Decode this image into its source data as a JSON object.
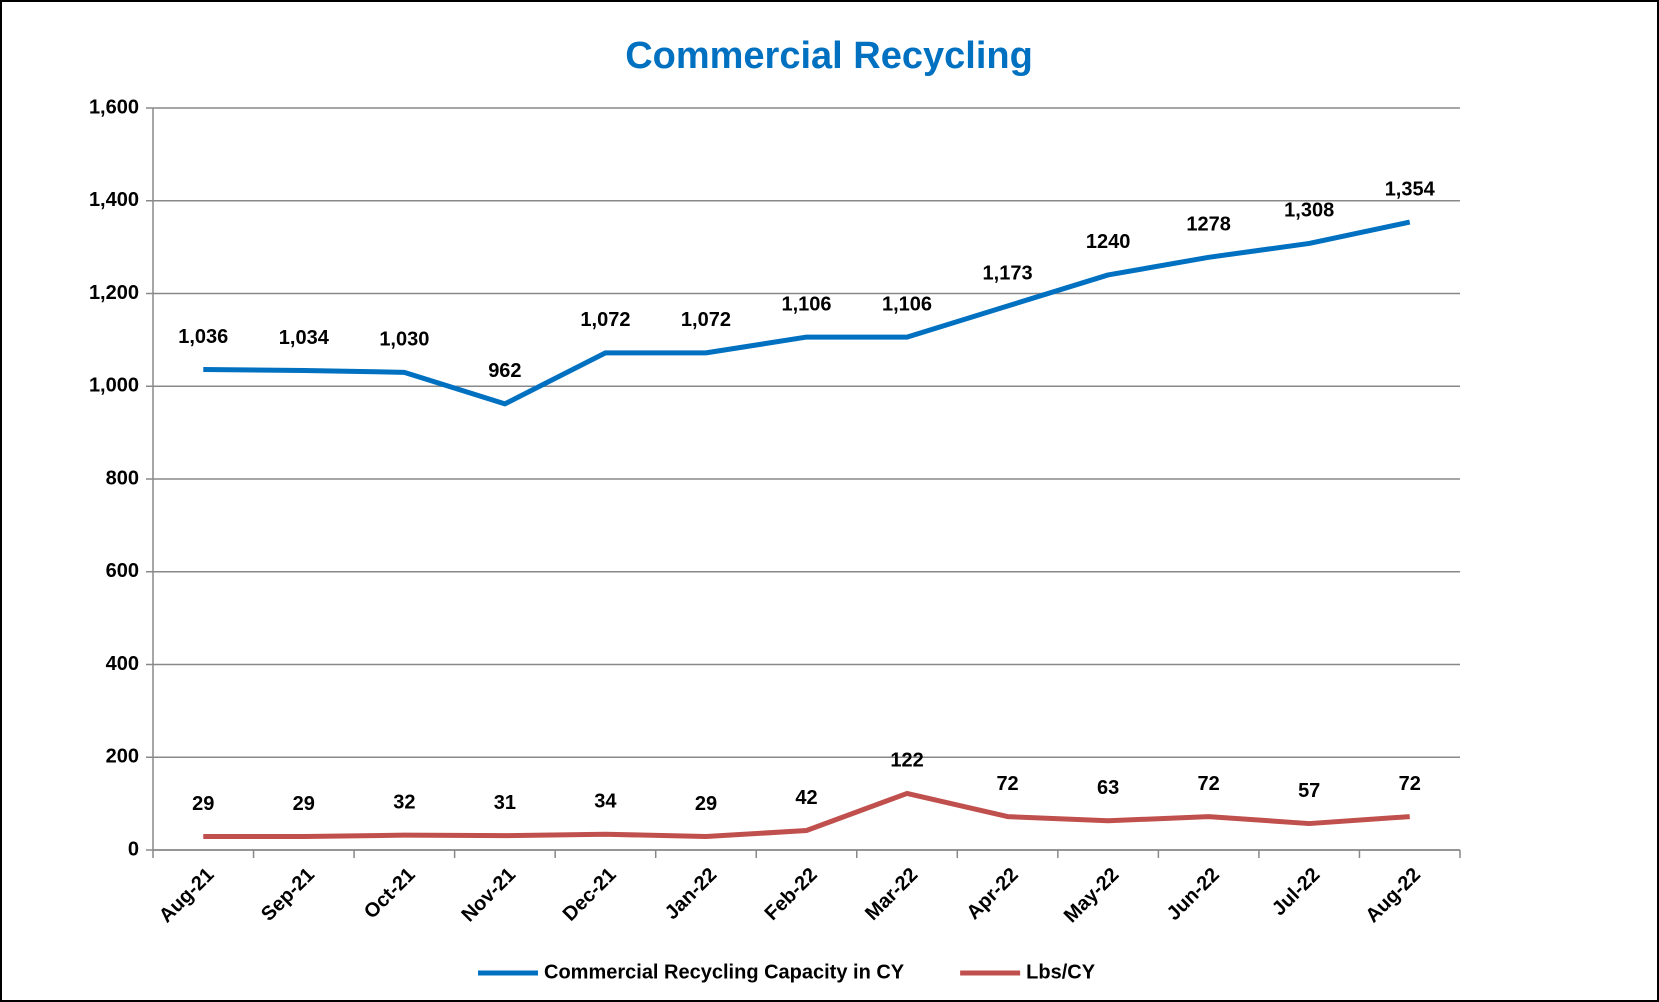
{
  "chart_data": {
    "type": "line",
    "title": "Commercial Recycling",
    "categories": [
      "Aug-21",
      "Sep-21",
      "Oct-21",
      "Nov-21",
      "Dec-21",
      "Jan-22",
      "Feb-22",
      "Mar-22",
      "Apr-22",
      "May-22",
      "Jun-22",
      "Jul-22",
      "Aug-22"
    ],
    "series": [
      {
        "name": "Commercial Recycling Capacity in CY",
        "color": "#0070c0",
        "values": [
          1036,
          1034,
          1030,
          962,
          1072,
          1072,
          1106,
          1106,
          1173,
          1240,
          1278,
          1308,
          1354
        ],
        "value_labels": [
          "1,036",
          "1,034",
          "1,030",
          "962",
          "1,072",
          "1,072",
          "1,106",
          "1,106",
          "1,173",
          "1240",
          "1278",
          "1,308",
          "1,354"
        ]
      },
      {
        "name": "Lbs/CY",
        "color": "#c0504d",
        "values": [
          29,
          29,
          32,
          31,
          34,
          29,
          42,
          122,
          72,
          63,
          72,
          57,
          72
        ]
      }
    ],
    "ylim": [
      0,
      1600
    ],
    "yticks": [
      0,
      200,
      400,
      600,
      800,
      {
        "value": 1000,
        "label": "1,000"
      },
      {
        "value": 1200,
        "label": "1,200"
      },
      {
        "value": 1400,
        "label": "1,400"
      },
      {
        "value": 1600,
        "label": "1,600"
      }
    ],
    "grid": true,
    "legend": "bottom"
  }
}
